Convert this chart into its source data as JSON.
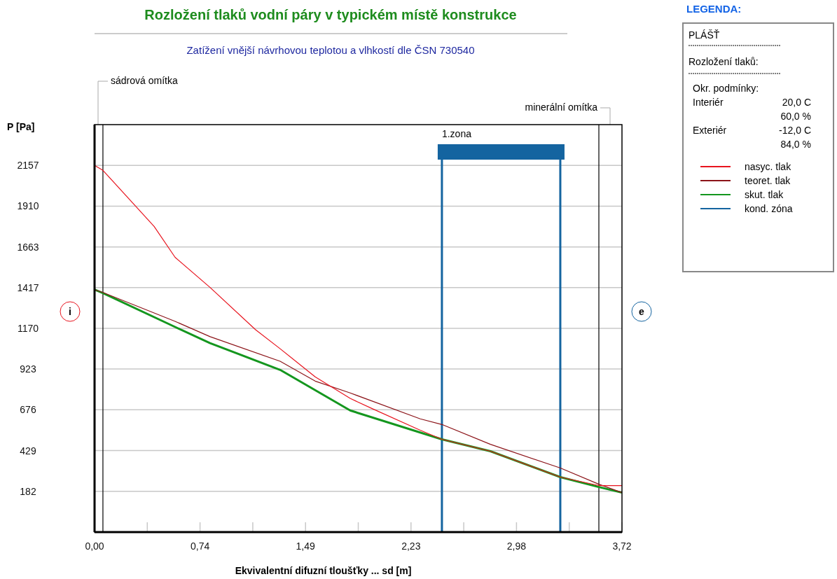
{
  "chart_data": {
    "type": "line",
    "title": "Rozložení tlaků vodní páry v typickém místě konstrukce",
    "subtitle": "Zatížení vnější návrhovou teplotou a vlhkostí dle ČSN 730540",
    "xlabel": "Ekvivalentní difuzní tloušťky ... sd [m]",
    "ylabel": "P [Pa]",
    "legend_title": "LEGENDA:",
    "x": [
      0,
      0.059,
      0.42,
      0.568,
      0.815,
      1.136,
      1.309,
      1.556,
      1.803,
      1.966,
      2.297,
      2.45,
      2.792,
      3.286,
      3.557,
      3.72
    ],
    "series": [
      {
        "name": "nasyc. tlak",
        "color": "#e8141e",
        "values": [
          2157,
          2127,
          1787,
          1600,
          1417,
          1161,
          1046,
          876,
          745,
          680,
          552,
          497,
          425,
          268,
          217,
          217
        ]
      },
      {
        "name": "teoret. tlak",
        "color": "#8c1419",
        "values": [
          1404,
          1387,
          null,
          1212,
          1119,
          null,
          970,
          850,
          778,
          null,
          621,
          587,
          467,
          323,
          225,
          174
        ]
      },
      {
        "name": "skut. tlak",
        "color": "#14961e",
        "values": [
          1404,
          1383,
          null,
          1178,
          1080,
          null,
          918,
          null,
          672,
          null,
          null,
          497,
          425,
          268,
          208,
          174
        ]
      }
    ],
    "xlim": [
      0,
      3.72
    ],
    "xticks": [
      {
        "value": 0,
        "label": "0,00"
      },
      {
        "value": 0.372,
        "label": null
      },
      {
        "value": 0.744,
        "label": "0,74"
      },
      {
        "value": 1.116,
        "label": null
      },
      {
        "value": 1.488,
        "label": "1,49"
      },
      {
        "value": 1.86,
        "label": null
      },
      {
        "value": 2.232,
        "label": "2,23"
      },
      {
        "value": 2.604,
        "label": null
      },
      {
        "value": 2.976,
        "label": "2,98"
      },
      {
        "value": 3.348,
        "label": null
      },
      {
        "value": 3.72,
        "label": "3,72"
      }
    ],
    "ylim": [
      -65,
      2404
    ],
    "yticks": [
      182,
      429,
      676,
      923,
      1170,
      1417,
      1663,
      1910,
      2157
    ],
    "grid": "y",
    "legend": "right",
    "ref_lines": [
      {
        "axis": "x",
        "value": 0.059,
        "color": "#000000"
      },
      {
        "axis": "x",
        "value": 3.557,
        "color": "#000000"
      },
      {
        "axis": "x",
        "value": 2.45,
        "color": "#1464a0",
        "label": "1.zona"
      },
      {
        "axis": "x",
        "value": 3.285,
        "color": "#1464a0"
      }
    ],
    "annotations": [
      "sádrová omítka",
      "minerální omítka",
      "i",
      "e",
      "PLÁŠŤ",
      "Rozložení tlaků:",
      "Okr. podmínky:",
      "Interiér",
      "20,0 C",
      "60,0 %",
      "Exteriér",
      "-12,0 C",
      "84,0 %",
      "kond. zóna"
    ]
  }
}
